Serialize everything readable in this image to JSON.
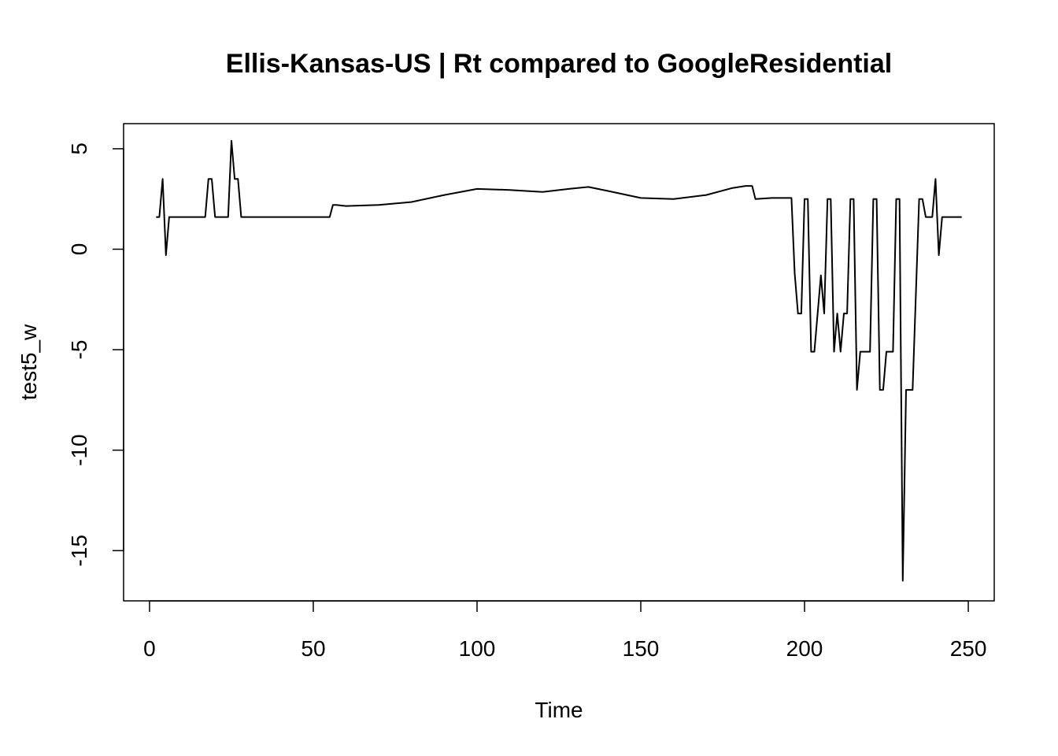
{
  "chart_data": {
    "type": "line",
    "title": "Ellis-Kansas-US | Rt compared to GoogleResidential",
    "xlabel": "Time",
    "ylabel": "test5_w",
    "xlim": [
      -7.92,
      257.92
    ],
    "ylim": [
      -17.5,
      6.25
    ],
    "xticks": [
      0,
      50,
      100,
      150,
      200,
      250
    ],
    "yticks": [
      -15,
      -10,
      -5,
      0,
      5
    ],
    "grid": false,
    "legend": "none",
    "line_color": "#000000",
    "series": [
      {
        "points": [
          [
            2,
            1.6
          ],
          [
            3,
            1.6
          ],
          [
            4,
            3.5
          ],
          [
            5,
            -0.3
          ],
          [
            6,
            1.6
          ],
          [
            10,
            1.6
          ],
          [
            14,
            1.6
          ],
          [
            17,
            1.6
          ],
          [
            18,
            3.5
          ],
          [
            19,
            3.5
          ],
          [
            20,
            1.6
          ],
          [
            24,
            1.6
          ],
          [
            25,
            5.4
          ],
          [
            26,
            3.5
          ],
          [
            27,
            3.5
          ],
          [
            28,
            1.6
          ],
          [
            35,
            1.6
          ],
          [
            45,
            1.6
          ],
          [
            55,
            1.6
          ],
          [
            56,
            2.2
          ],
          [
            57,
            2.2
          ],
          [
            60,
            2.15
          ],
          [
            70,
            2.2
          ],
          [
            80,
            2.35
          ],
          [
            90,
            2.7
          ],
          [
            100,
            3.0
          ],
          [
            110,
            2.95
          ],
          [
            120,
            2.85
          ],
          [
            128,
            3.0
          ],
          [
            134,
            3.1
          ],
          [
            140,
            2.9
          ],
          [
            150,
            2.55
          ],
          [
            160,
            2.5
          ],
          [
            170,
            2.7
          ],
          [
            178,
            3.05
          ],
          [
            182,
            3.15
          ],
          [
            184,
            3.15
          ],
          [
            185,
            2.5
          ],
          [
            190,
            2.55
          ],
          [
            196,
            2.55
          ],
          [
            197,
            -1.2
          ],
          [
            198,
            -3.2
          ],
          [
            199,
            -3.2
          ],
          [
            200,
            2.5
          ],
          [
            201,
            2.5
          ],
          [
            202,
            -5.1
          ],
          [
            203,
            -5.1
          ],
          [
            205,
            -1.3
          ],
          [
            206,
            -3.2
          ],
          [
            207,
            2.5
          ],
          [
            208,
            2.5
          ],
          [
            209,
            -5.1
          ],
          [
            210,
            -3.2
          ],
          [
            211,
            -5.1
          ],
          [
            212,
            -3.2
          ],
          [
            213,
            -3.2
          ],
          [
            214,
            2.5
          ],
          [
            215,
            2.5
          ],
          [
            216,
            -7.0
          ],
          [
            217,
            -5.1
          ],
          [
            218,
            -5.1
          ],
          [
            219,
            -5.1
          ],
          [
            220,
            -5.1
          ],
          [
            221,
            2.5
          ],
          [
            222,
            2.5
          ],
          [
            223,
            -7.0
          ],
          [
            224,
            -7.0
          ],
          [
            225,
            -5.1
          ],
          [
            226,
            -5.1
          ],
          [
            227,
            -5.1
          ],
          [
            228,
            2.5
          ],
          [
            229,
            2.5
          ],
          [
            230,
            -16.5
          ],
          [
            230.5,
            -11.8
          ],
          [
            231,
            -7.0
          ],
          [
            233,
            -7.0
          ],
          [
            235,
            2.5
          ],
          [
            236,
            2.5
          ],
          [
            237,
            1.6
          ],
          [
            238,
            1.6
          ],
          [
            239,
            1.6
          ],
          [
            240,
            3.5
          ],
          [
            241,
            -0.3
          ],
          [
            242,
            1.6
          ],
          [
            245,
            1.6
          ],
          [
            248,
            1.6
          ]
        ]
      }
    ]
  }
}
